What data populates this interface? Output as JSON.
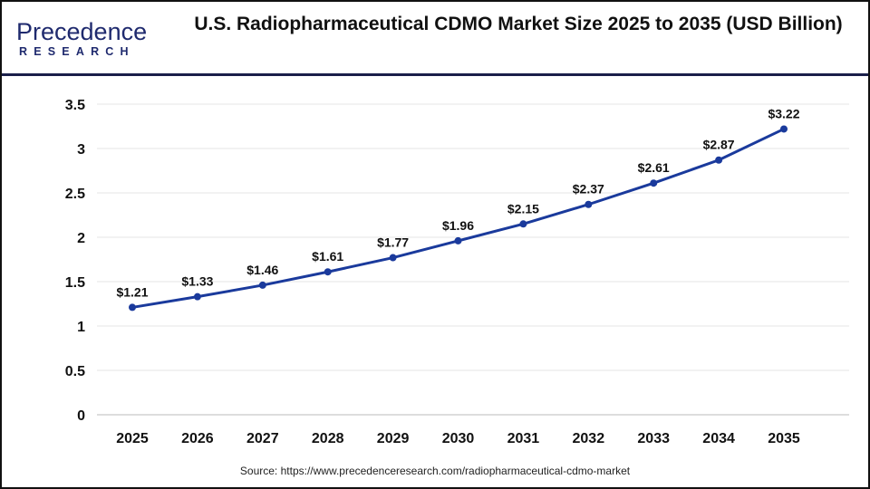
{
  "logo": {
    "line1": "Precedence",
    "line2": "RESEARCH"
  },
  "title": "U.S. Radiopharmaceutical CDMO Market Size 2025 to 2035 (USD Billion)",
  "source": "Source: https://www.precedenceresearch.com/radiopharmaceutical-cdmo-market",
  "colors": {
    "line": "#1a3a9c",
    "grid": "#e6e6e6",
    "divider": "#1a1f4a"
  },
  "chart_data": {
    "type": "line",
    "title": "U.S. Radiopharmaceutical CDMO Market Size 2025 to 2035 (USD Billion)",
    "categories": [
      "2025",
      "2026",
      "2027",
      "2028",
      "2029",
      "2030",
      "2031",
      "2032",
      "2033",
      "2034",
      "2035"
    ],
    "values": [
      1.21,
      1.33,
      1.46,
      1.61,
      1.77,
      1.96,
      2.15,
      2.37,
      2.61,
      2.87,
      3.22
    ],
    "data_labels": [
      "$1.21",
      "$1.33",
      "$1.46",
      "$1.61",
      "$1.77",
      "$1.96",
      "$2.15",
      "$2.37",
      "$2.61",
      "$2.87",
      "$3.22"
    ],
    "yticks": [
      "0",
      "0.5",
      "1",
      "1.5",
      "2",
      "2.5",
      "3",
      "3.5"
    ],
    "ylim": [
      0,
      3.5
    ],
    "grid": true,
    "xlabel": "",
    "ylabel": ""
  }
}
